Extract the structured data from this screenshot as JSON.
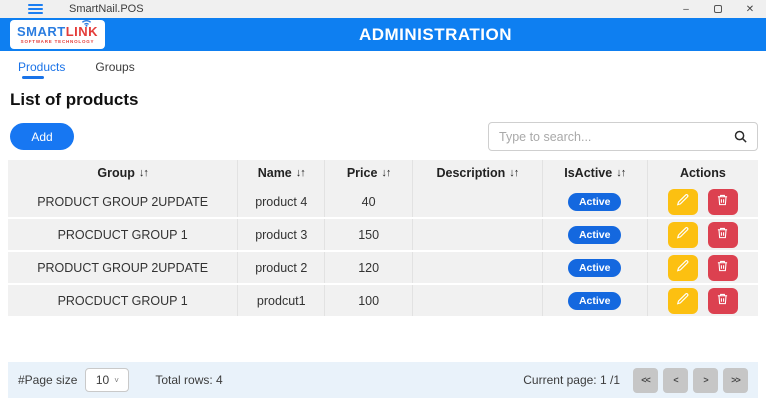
{
  "titlebar": {
    "app_title": "SmartNail.POS",
    "minimize_glyph": "–",
    "close_glyph": "✕"
  },
  "header": {
    "title": "ADMINISTRATION",
    "logo": {
      "smart": "SMART",
      "link": "LINK",
      "subtitle": "SOFTWARE TECHNOLOGY"
    }
  },
  "tabs": [
    {
      "label": "Products",
      "active": true
    },
    {
      "label": "Groups",
      "active": false
    }
  ],
  "page": {
    "heading": "List of products",
    "add_label": "Add",
    "search_placeholder": "Type to search..."
  },
  "table": {
    "sort_icon": "↓↑",
    "columns": [
      {
        "label": "Group",
        "sortable": true
      },
      {
        "label": "Name",
        "sortable": true
      },
      {
        "label": "Price",
        "sortable": true
      },
      {
        "label": "Description",
        "sortable": true
      },
      {
        "label": "IsActive",
        "sortable": true
      },
      {
        "label": "Actions",
        "sortable": false
      }
    ],
    "rows": [
      {
        "group": "PRODUCT GROUP 2UPDATE",
        "name": "product 4",
        "price": "40",
        "description": "",
        "is_active": "Active"
      },
      {
        "group": "PROCDUCT GROUP 1",
        "name": "product 3",
        "price": "150",
        "description": "",
        "is_active": "Active"
      },
      {
        "group": "PRODUCT GROUP 2UPDATE",
        "name": "product 2",
        "price": "120",
        "description": "",
        "is_active": "Active"
      },
      {
        "group": "PROCDUCT GROUP 1",
        "name": "prodcut1",
        "price": "100",
        "description": "",
        "is_active": "Active"
      }
    ]
  },
  "footer": {
    "page_size_label": "#Page size",
    "page_size_value": "10",
    "total_rows": "Total rows: 4",
    "current_page": "Current page: 1 /1",
    "pagination": [
      "<<",
      "<",
      ">",
      ">>"
    ]
  },
  "colors": {
    "header_blue": "#0e7ff1",
    "accent_blue": "#1777f2",
    "badge_blue": "#1468df",
    "edit_yellow": "#fcc011",
    "delete_red": "#dc4150",
    "footer_bg": "#e9f2fa",
    "logo_red": "#e43c39",
    "logo_blue": "#2b7de0"
  }
}
